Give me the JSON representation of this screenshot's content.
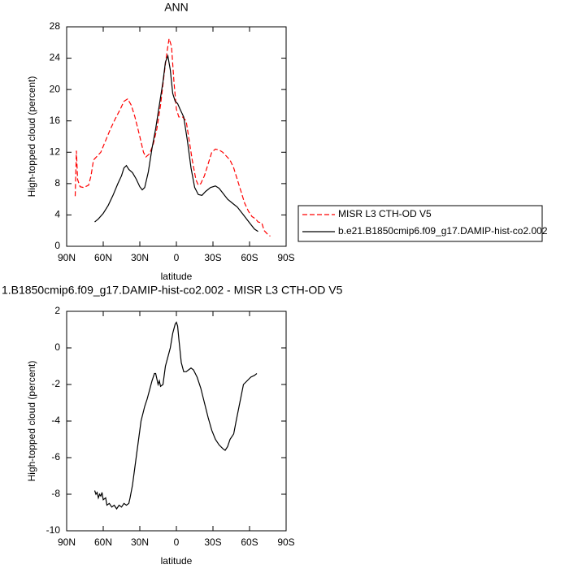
{
  "chart_data": [
    {
      "type": "line",
      "title": "ANN",
      "xlabel": "latitude",
      "ylabel": "High-topped cloud (percent)",
      "xlim": [
        90,
        -90
      ],
      "ylim": [
        0,
        28
      ],
      "xticks": [
        {
          "value": 90,
          "label": "90N"
        },
        {
          "value": 60,
          "label": "60N"
        },
        {
          "value": 30,
          "label": "30N"
        },
        0,
        {
          "value": -30,
          "label": "30S"
        },
        {
          "value": -60,
          "label": "60S"
        },
        {
          "value": -90,
          "label": "90S"
        }
      ],
      "yticks": [
        0,
        4,
        8,
        12,
        16,
        20,
        24,
        28
      ],
      "series": [
        {
          "name": "MISR L3 CTH-OD V5",
          "color": "#ff0000",
          "dashed": true,
          "x": [
            83,
            82,
            81,
            79,
            76,
            72,
            70,
            68,
            65,
            62,
            58,
            54,
            50,
            46,
            43,
            40,
            37,
            34,
            30,
            27,
            25,
            22,
            19,
            16,
            13,
            10,
            8,
            6,
            4,
            2,
            0,
            -2,
            -5,
            -8,
            -10,
            -13,
            -16,
            -18,
            -20,
            -23,
            -26,
            -29,
            -32,
            -35,
            -38,
            -41,
            -44,
            -47,
            -50,
            -53,
            -56,
            -59,
            -62,
            -65,
            -67,
            -70,
            -72,
            -75,
            -77
          ],
          "values": [
            6.4,
            12.2,
            8.5,
            7.6,
            7.5,
            7.8,
            9,
            11,
            11.5,
            12,
            13.5,
            15,
            16.3,
            17.5,
            18.5,
            18.8,
            18,
            16.5,
            14,
            12,
            11.4,
            11.8,
            13,
            15,
            18,
            22,
            24.5,
            26.5,
            25.5,
            21,
            17.5,
            16.5,
            16.5,
            16,
            14,
            11,
            8.5,
            7.8,
            8,
            9,
            10.5,
            12,
            12.4,
            12.3,
            12,
            11.5,
            11,
            10,
            8.5,
            7,
            5.5,
            4.5,
            3.8,
            3.5,
            3.1,
            3,
            2,
            1.5,
            1.3
          ]
        },
        {
          "name": "b.e21.B1850cmip6.f09_g17.DAMIP-hist-co2.002",
          "color": "#000000",
          "dashed": false,
          "x": [
            67,
            64,
            60,
            56,
            52,
            48,
            45,
            43,
            41,
            39,
            36,
            33,
            30,
            28,
            26,
            23,
            20,
            17,
            14,
            11,
            9,
            7,
            5,
            3,
            1,
            -1,
            -3,
            -6,
            -9,
            -12,
            -15,
            -18,
            -21,
            -24,
            -28,
            -32,
            -35,
            -38,
            -42,
            -46,
            -50,
            -55,
            -60,
            -64,
            -67
          ],
          "values": [
            3.1,
            3.5,
            4.2,
            5.2,
            6.5,
            8,
            9,
            10,
            10.3,
            9.8,
            9.4,
            8.6,
            7.6,
            7.2,
            7.5,
            9.5,
            12.5,
            15,
            18,
            21,
            23.5,
            24.3,
            22.5,
            19.5,
            18.5,
            18.2,
            17.5,
            16.5,
            13.5,
            10,
            7.5,
            6.6,
            6.5,
            7,
            7.5,
            7.7,
            7.4,
            6.8,
            6,
            5.5,
            5,
            4,
            3,
            2.2,
            1.9
          ]
        }
      ]
    },
    {
      "type": "line",
      "title": "1.B1850cmip6.f09_g17.DAMIP-hist-co2.002 - MISR L3 CTH-OD V5",
      "xlabel": "latitude",
      "ylabel": "High-topped cloud (percent)",
      "xlim": [
        90,
        -90
      ],
      "ylim": [
        -10,
        2
      ],
      "xticks": [
        {
          "value": 90,
          "label": "90N"
        },
        {
          "value": 60,
          "label": "60N"
        },
        {
          "value": 30,
          "label": "30N"
        },
        0,
        {
          "value": -30,
          "label": "30S"
        },
        {
          "value": -60,
          "label": "60S"
        },
        {
          "value": -90,
          "label": "90S"
        }
      ],
      "yticks": [
        -10,
        -8,
        -6,
        -4,
        -2,
        0,
        2
      ],
      "series": [
        {
          "color": "#000000",
          "dashed": false,
          "x": [
            67,
            66,
            65,
            64,
            63,
            62,
            61,
            60,
            58,
            57,
            55,
            53,
            51,
            49,
            47,
            45,
            43,
            41,
            39,
            38,
            36,
            35,
            33,
            31,
            29,
            26,
            24,
            22,
            20,
            18,
            17,
            15,
            14,
            13,
            11,
            9,
            7,
            5,
            3,
            1,
            0,
            -1,
            -2,
            -4,
            -6,
            -8,
            -10,
            -12,
            -14,
            -17,
            -20,
            -23,
            -26,
            -29,
            -32,
            -35,
            -38,
            -40,
            -42,
            -44,
            -47,
            -49,
            -52,
            -55,
            -58,
            -61,
            -64,
            -66
          ],
          "values": [
            -7.8,
            -8,
            -7.9,
            -8.2,
            -8,
            -8.1,
            -7.9,
            -8.3,
            -8.2,
            -8.6,
            -8.5,
            -8.7,
            -8.6,
            -8.8,
            -8.6,
            -8.7,
            -8.5,
            -8.6,
            -8.5,
            -8.2,
            -7.5,
            -7,
            -6,
            -5,
            -4,
            -3.2,
            -2.8,
            -2.3,
            -1.8,
            -1.4,
            -1.4,
            -2,
            -1.8,
            -2.1,
            -2,
            -1,
            -0.5,
            0,
            0.8,
            1.3,
            1.4,
            1.2,
            0.5,
            -0.8,
            -1.3,
            -1.3,
            -1.2,
            -1.1,
            -1.2,
            -1.6,
            -2.2,
            -3,
            -3.8,
            -4.5,
            -5,
            -5.3,
            -5.5,
            -5.6,
            -5.4,
            -5,
            -4.7,
            -4,
            -3,
            -2,
            -1.8,
            -1.6,
            -1.5,
            -1.4
          ]
        }
      ]
    }
  ]
}
